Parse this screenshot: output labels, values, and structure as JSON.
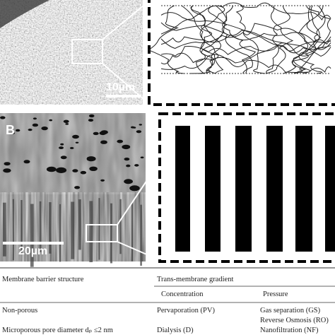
{
  "panels": [
    {
      "scale_bar": "10µm"
    },
    {
      "label": "B",
      "scale_bar": "20µm"
    }
  ],
  "table": {
    "headers": {
      "structure": "Membrane barrier structure",
      "gradient": "Trans-membrane gradient",
      "concentration": "Concentration",
      "pressure": "Pressure"
    },
    "rows": [
      [
        "Non-porous",
        "Pervaporation (PV)",
        "Gas separation (GS)",
        "Reverse Osmosis (RO)"
      ],
      [
        "Microporous pore diameter dₚ ≤2 nm",
        "Dialysis (D)",
        "Nanofiltration (NF)"
      ]
    ]
  }
}
